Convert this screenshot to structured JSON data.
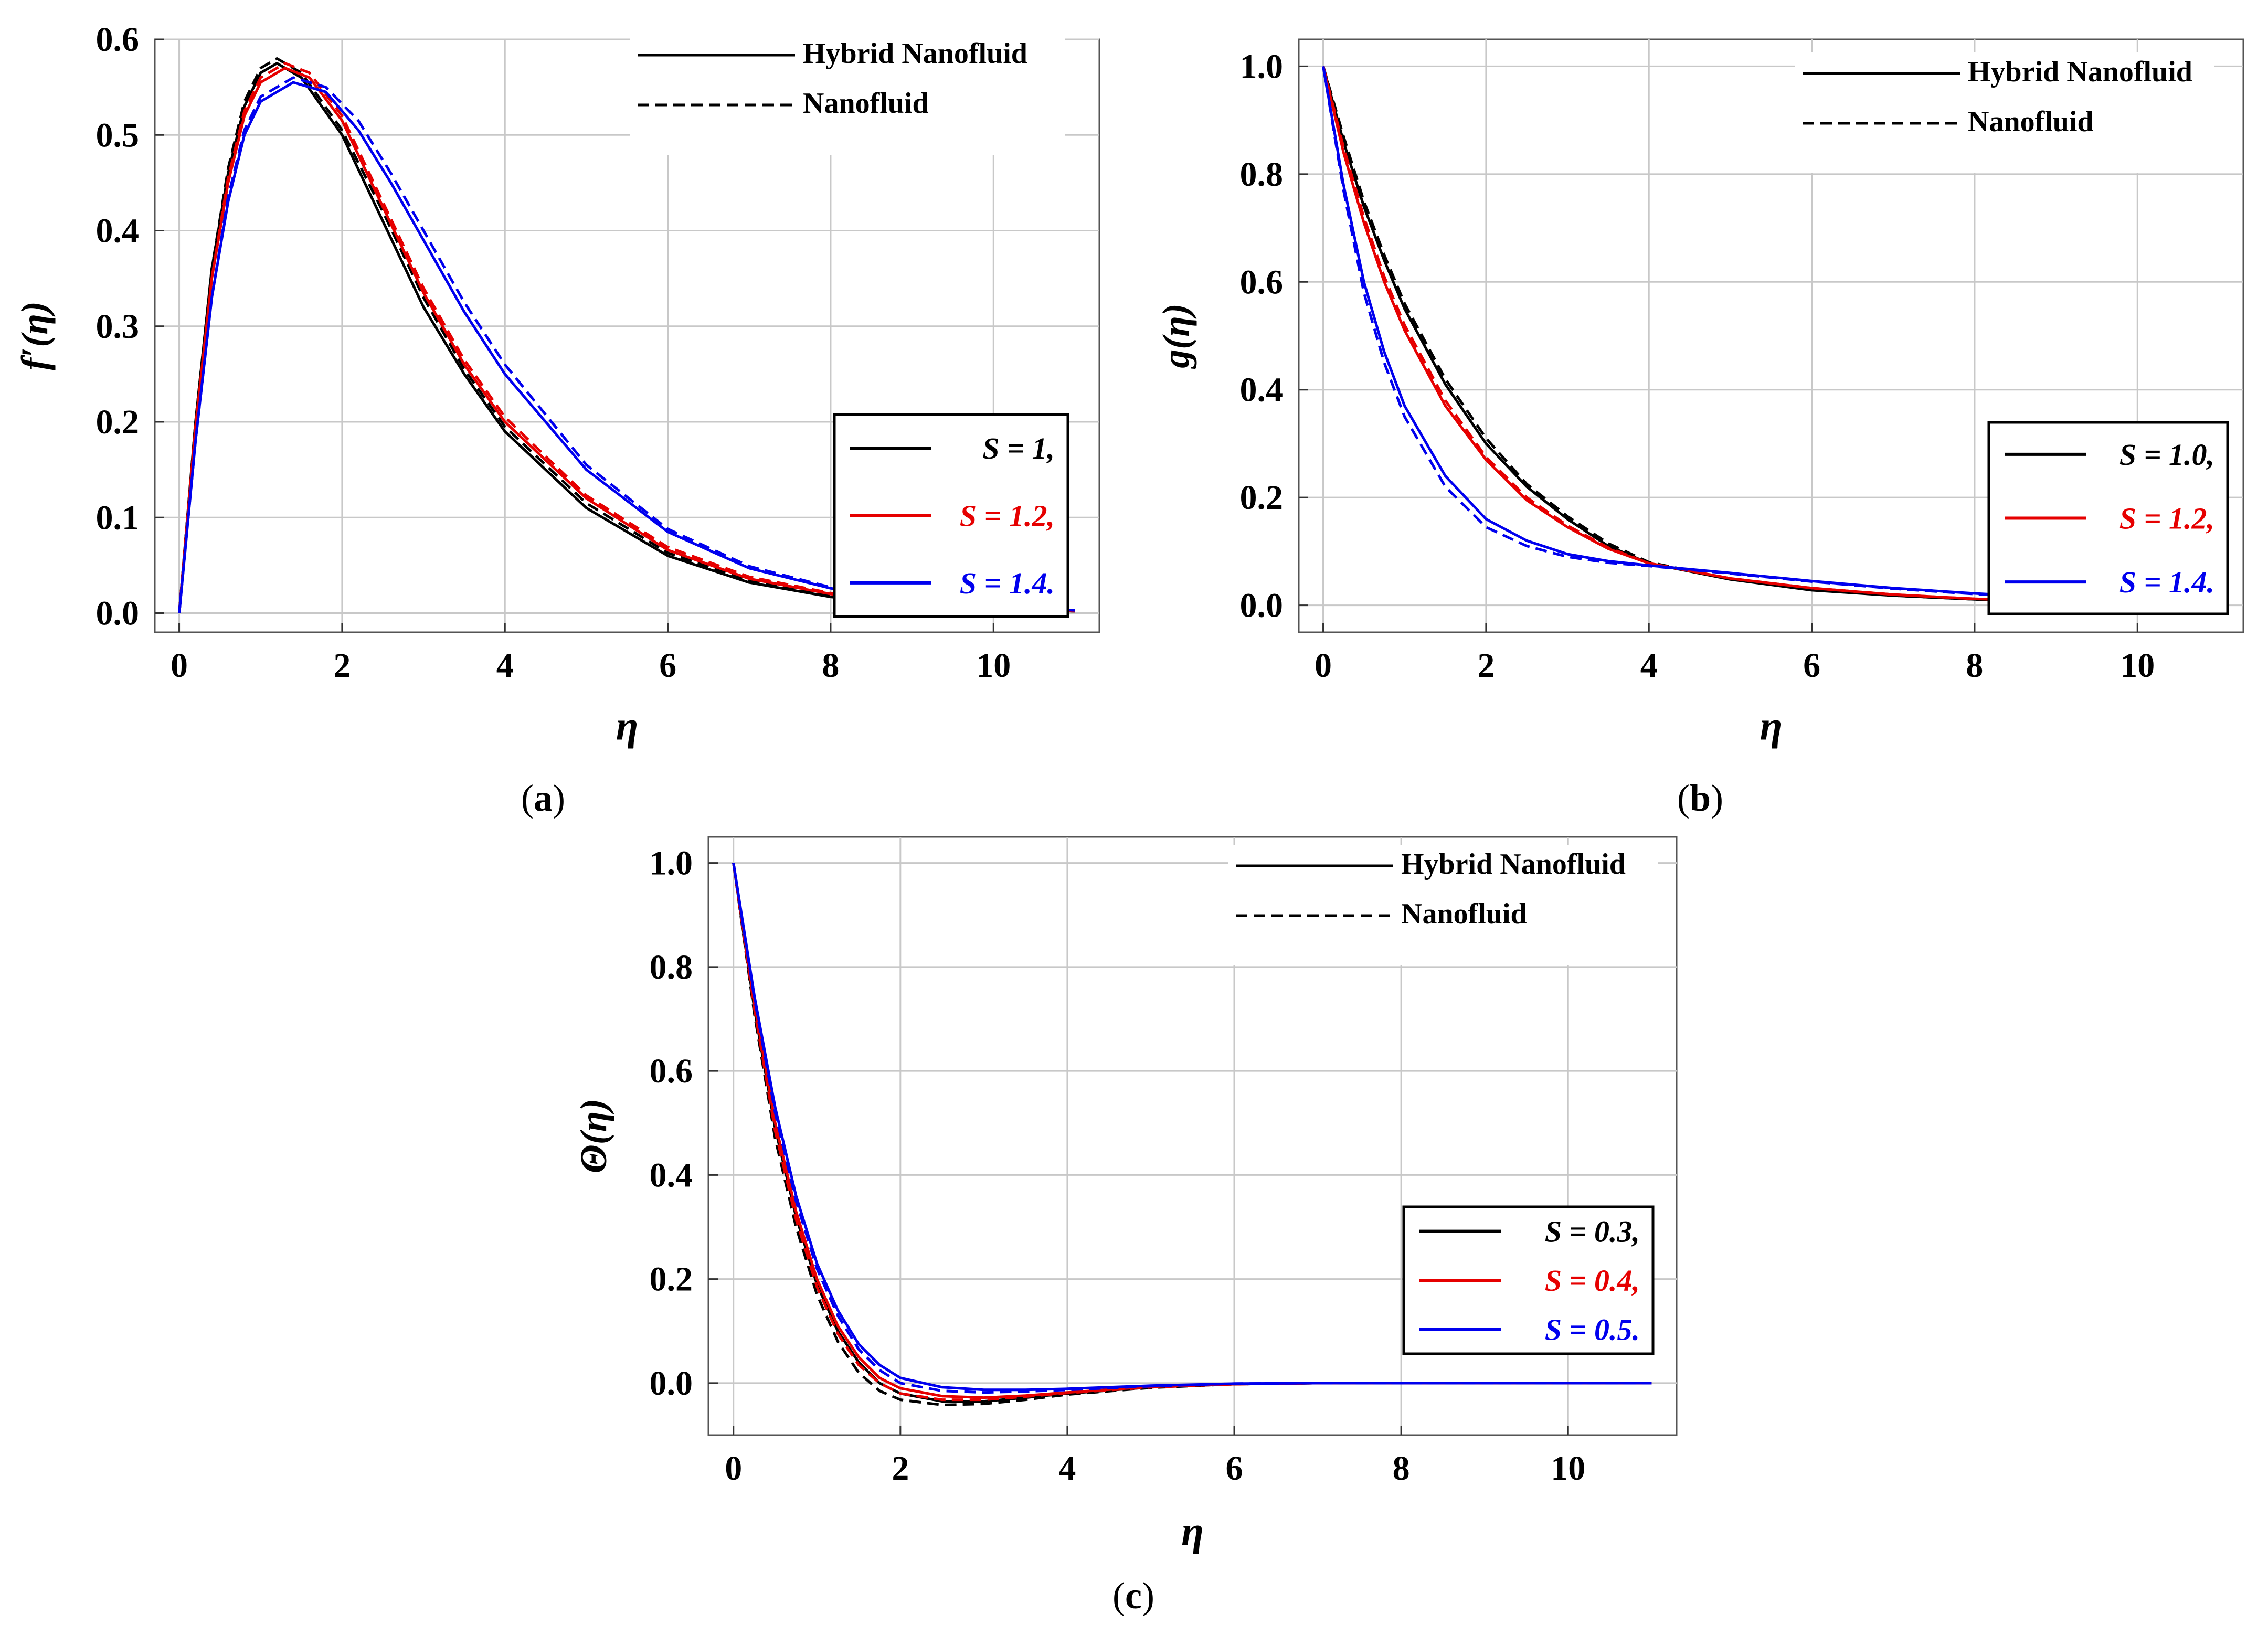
{
  "legend_styles": [
    "Hybrid Nanofluid",
    "Nanofluid"
  ],
  "chart_data": [
    {
      "id": "a",
      "type": "line",
      "caption_letter": "a",
      "ylabel": "f′(η)",
      "xlabel": "η",
      "xlim": [
        -0.3,
        11.3
      ],
      "ylim": [
        -0.02,
        0.6
      ],
      "xticks": [
        "0",
        "2",
        "4",
        "6",
        "8",
        "10"
      ],
      "xtick_values": [
        0,
        2,
        4,
        6,
        8,
        10
      ],
      "yticks": [
        "0.0",
        "0.1",
        "0.2",
        "0.3",
        "0.4",
        "0.5",
        "0.6"
      ],
      "ytick_values": [
        0,
        0.1,
        0.2,
        0.3,
        0.4,
        0.5,
        0.6
      ],
      "series": [
        {
          "name": "S = 1,",
          "fluid": "Hybrid Nanofluid",
          "color": "#000000",
          "dash": false,
          "x": [
            0,
            0.2,
            0.4,
            0.6,
            0.8,
            1.0,
            1.2,
            1.5,
            2,
            2.5,
            3,
            3.5,
            4,
            5,
            6,
            7,
            8,
            9,
            10,
            11
          ],
          "y": [
            0,
            0.2,
            0.36,
            0.46,
            0.53,
            0.565,
            0.575,
            0.56,
            0.5,
            0.41,
            0.32,
            0.25,
            0.19,
            0.11,
            0.06,
            0.032,
            0.017,
            0.009,
            0.005,
            0.002
          ]
        },
        {
          "name": "S = 1,",
          "fluid": "Nanofluid",
          "color": "#000000",
          "dash": true,
          "x": [
            0,
            0.2,
            0.4,
            0.6,
            0.8,
            1.0,
            1.2,
            1.5,
            2,
            2.5,
            3,
            3.5,
            4,
            5,
            6,
            7,
            8,
            9,
            10,
            11
          ],
          "y": [
            0,
            0.2,
            0.36,
            0.465,
            0.535,
            0.57,
            0.58,
            0.565,
            0.505,
            0.42,
            0.33,
            0.255,
            0.195,
            0.115,
            0.063,
            0.034,
            0.018,
            0.01,
            0.005,
            0.002
          ]
        },
        {
          "name": "S = 1.2,",
          "fluid": "Hybrid Nanofluid",
          "color": "#e60000",
          "dash": false,
          "x": [
            0,
            0.2,
            0.4,
            0.6,
            0.8,
            1.0,
            1.3,
            1.6,
            2,
            2.5,
            3,
            3.5,
            4,
            5,
            6,
            7,
            8,
            9,
            10,
            11
          ],
          "y": [
            0,
            0.195,
            0.35,
            0.45,
            0.52,
            0.555,
            0.57,
            0.56,
            0.515,
            0.425,
            0.335,
            0.26,
            0.2,
            0.12,
            0.066,
            0.036,
            0.02,
            0.011,
            0.006,
            0.002
          ]
        },
        {
          "name": "S = 1.2,",
          "fluid": "Nanofluid",
          "color": "#e60000",
          "dash": true,
          "x": [
            0,
            0.2,
            0.4,
            0.6,
            0.8,
            1.0,
            1.3,
            1.6,
            2,
            2.5,
            3,
            3.5,
            4,
            5,
            6,
            7,
            8,
            9,
            10,
            11
          ],
          "y": [
            0,
            0.195,
            0.35,
            0.455,
            0.525,
            0.56,
            0.575,
            0.565,
            0.52,
            0.43,
            0.34,
            0.265,
            0.205,
            0.123,
            0.069,
            0.038,
            0.021,
            0.011,
            0.006,
            0.002
          ]
        },
        {
          "name": "S = 1.4.",
          "fluid": "Hybrid Nanofluid",
          "color": "#0000ee",
          "dash": false,
          "x": [
            0,
            0.2,
            0.4,
            0.6,
            0.8,
            1.0,
            1.4,
            1.8,
            2.2,
            2.6,
            3,
            3.5,
            4,
            5,
            6,
            7,
            8,
            9,
            10,
            11
          ],
          "y": [
            0,
            0.18,
            0.33,
            0.43,
            0.5,
            0.535,
            0.555,
            0.545,
            0.505,
            0.45,
            0.39,
            0.315,
            0.25,
            0.15,
            0.085,
            0.047,
            0.026,
            0.014,
            0.007,
            0.003
          ]
        },
        {
          "name": "S = 1.4.",
          "fluid": "Nanofluid",
          "color": "#0000ee",
          "dash": true,
          "x": [
            0,
            0.2,
            0.4,
            0.6,
            0.8,
            1.0,
            1.4,
            1.8,
            2.2,
            2.6,
            3,
            3.5,
            4,
            5,
            6,
            7,
            8,
            9,
            10,
            11
          ],
          "y": [
            0,
            0.18,
            0.33,
            0.435,
            0.505,
            0.54,
            0.56,
            0.55,
            0.515,
            0.46,
            0.4,
            0.325,
            0.26,
            0.155,
            0.088,
            0.049,
            0.027,
            0.015,
            0.008,
            0.003
          ]
        }
      ]
    },
    {
      "id": "b",
      "type": "line",
      "caption_letter": "b",
      "ylabel": "g(η)",
      "xlabel": "η",
      "xlim": [
        -0.3,
        11.3
      ],
      "ylim": [
        -0.05,
        1.05
      ],
      "xticks": [
        "0",
        "2",
        "4",
        "6",
        "8",
        "10"
      ],
      "xtick_values": [
        0,
        2,
        4,
        6,
        8,
        10
      ],
      "yticks": [
        "0.0",
        "0.2",
        "0.4",
        "0.6",
        "0.8",
        "1.0"
      ],
      "ytick_values": [
        0,
        0.2,
        0.4,
        0.6,
        0.8,
        1.0
      ],
      "series": [
        {
          "name": "S = 1.0,",
          "fluid": "Hybrid Nanofluid",
          "color": "#000000",
          "dash": false,
          "x": [
            0,
            0.25,
            0.5,
            0.75,
            1,
            1.5,
            2,
            2.5,
            3,
            3.5,
            4,
            5,
            6,
            7,
            8,
            9,
            10,
            11
          ],
          "y": [
            1.0,
            0.86,
            0.74,
            0.64,
            0.55,
            0.41,
            0.3,
            0.22,
            0.16,
            0.11,
            0.078,
            0.048,
            0.028,
            0.018,
            0.011,
            0.007,
            0.004,
            0.002
          ]
        },
        {
          "name": "S = 1.0,",
          "fluid": "Nanofluid",
          "color": "#000000",
          "dash": true,
          "x": [
            0,
            0.25,
            0.5,
            0.75,
            1,
            1.5,
            2,
            2.5,
            3,
            3.5,
            4,
            5,
            6,
            7,
            8,
            9,
            10,
            11
          ],
          "y": [
            1.0,
            0.87,
            0.75,
            0.65,
            0.56,
            0.42,
            0.31,
            0.225,
            0.165,
            0.115,
            0.08,
            0.049,
            0.029,
            0.018,
            0.011,
            0.007,
            0.004,
            0.002
          ]
        },
        {
          "name": "S = 1.2,",
          "fluid": "Hybrid Nanofluid",
          "color": "#e60000",
          "dash": false,
          "x": [
            0,
            0.25,
            0.5,
            0.75,
            1,
            1.5,
            2,
            2.5,
            3,
            3.5,
            4,
            5,
            6,
            7,
            8,
            9,
            10,
            11
          ],
          "y": [
            1.0,
            0.84,
            0.71,
            0.6,
            0.51,
            0.37,
            0.27,
            0.195,
            0.145,
            0.105,
            0.078,
            0.05,
            0.032,
            0.02,
            0.012,
            0.008,
            0.005,
            0.002
          ]
        },
        {
          "name": "S = 1.2,",
          "fluid": "Nanofluid",
          "color": "#e60000",
          "dash": true,
          "x": [
            0,
            0.25,
            0.5,
            0.75,
            1,
            1.5,
            2,
            2.5,
            3,
            3.5,
            4,
            5,
            6,
            7,
            8,
            9,
            10,
            11
          ],
          "y": [
            1.0,
            0.85,
            0.72,
            0.61,
            0.52,
            0.38,
            0.275,
            0.2,
            0.148,
            0.107,
            0.078,
            0.05,
            0.032,
            0.02,
            0.012,
            0.008,
            0.005,
            0.002
          ]
        },
        {
          "name": "S = 1.4.",
          "fluid": "Hybrid Nanofluid",
          "color": "#0000ee",
          "dash": false,
          "x": [
            0,
            0.25,
            0.5,
            0.75,
            1,
            1.5,
            2,
            2.5,
            3,
            3.5,
            4,
            5,
            6,
            7,
            8,
            9,
            10,
            11
          ],
          "y": [
            1.0,
            0.78,
            0.6,
            0.47,
            0.37,
            0.24,
            0.16,
            0.12,
            0.095,
            0.082,
            0.074,
            0.06,
            0.045,
            0.032,
            0.022,
            0.014,
            0.008,
            0.003
          ]
        },
        {
          "name": "S = 1.4.",
          "fluid": "Nanofluid",
          "color": "#0000ee",
          "dash": true,
          "x": [
            0,
            0.25,
            0.5,
            0.75,
            1,
            1.5,
            2,
            2.5,
            3,
            3.5,
            4,
            5,
            6,
            7,
            8,
            9,
            10,
            11
          ],
          "y": [
            1.0,
            0.77,
            0.58,
            0.45,
            0.35,
            0.22,
            0.145,
            0.11,
            0.09,
            0.079,
            0.073,
            0.059,
            0.044,
            0.031,
            0.021,
            0.013,
            0.007,
            0.003
          ]
        }
      ]
    },
    {
      "id": "c",
      "type": "line",
      "caption_letter": "c",
      "ylabel": "Θ(η)",
      "xlabel": "η",
      "xlim": [
        -0.3,
        11.3
      ],
      "ylim": [
        -0.1,
        1.05
      ],
      "xticks": [
        "0",
        "2",
        "4",
        "6",
        "8",
        "10"
      ],
      "xtick_values": [
        0,
        2,
        4,
        6,
        8,
        10
      ],
      "yticks": [
        "0.0",
        "0.2",
        "0.4",
        "0.6",
        "0.8",
        "1.0"
      ],
      "ytick_values": [
        0,
        0.2,
        0.4,
        0.6,
        0.8,
        1.0
      ],
      "series": [
        {
          "name": "S = 0.3,",
          "fluid": "Hybrid Nanofluid",
          "color": "#000000",
          "dash": false,
          "x": [
            0,
            0.25,
            0.5,
            0.75,
            1,
            1.25,
            1.5,
            1.75,
            2,
            2.5,
            3,
            3.5,
            4,
            5,
            6,
            7,
            8,
            9,
            10,
            11
          ],
          "y": [
            1.0,
            0.72,
            0.49,
            0.32,
            0.19,
            0.1,
            0.04,
            0.0,
            -0.02,
            -0.035,
            -0.035,
            -0.028,
            -0.02,
            -0.008,
            -0.002,
            0,
            0,
            0,
            0,
            0
          ]
        },
        {
          "name": "S = 0.3,",
          "fluid": "Nanofluid",
          "color": "#000000",
          "dash": true,
          "x": [
            0,
            0.25,
            0.5,
            0.75,
            1,
            1.25,
            1.5,
            1.75,
            2,
            2.5,
            3,
            3.5,
            4,
            5,
            6,
            7,
            8,
            9,
            10,
            11
          ],
          "y": [
            1.0,
            0.71,
            0.47,
            0.3,
            0.17,
            0.08,
            0.02,
            -0.015,
            -0.032,
            -0.042,
            -0.04,
            -0.032,
            -0.022,
            -0.009,
            -0.002,
            0,
            0,
            0,
            0,
            0
          ]
        },
        {
          "name": "S = 0.4,",
          "fluid": "Hybrid Nanofluid",
          "color": "#e60000",
          "dash": false,
          "x": [
            0,
            0.25,
            0.5,
            0.75,
            1,
            1.25,
            1.5,
            1.75,
            2,
            2.5,
            3,
            3.5,
            4,
            5,
            6,
            7,
            8,
            9,
            10,
            11
          ],
          "y": [
            1.0,
            0.73,
            0.5,
            0.33,
            0.2,
            0.11,
            0.05,
            0.01,
            -0.01,
            -0.025,
            -0.028,
            -0.024,
            -0.018,
            -0.007,
            -0.002,
            0,
            0,
            0,
            0,
            0
          ]
        },
        {
          "name": "S = 0.4,",
          "fluid": "Nanofluid",
          "color": "#e60000",
          "dash": true,
          "x": [
            0,
            0.25,
            0.5,
            0.75,
            1,
            1.25,
            1.5,
            1.75,
            2,
            2.5,
            3,
            3.5,
            4,
            5,
            6,
            7,
            8,
            9,
            10,
            11
          ],
          "y": [
            1.0,
            0.72,
            0.485,
            0.315,
            0.185,
            0.095,
            0.035,
            0.0,
            -0.02,
            -0.032,
            -0.032,
            -0.026,
            -0.019,
            -0.008,
            -0.002,
            0,
            0,
            0,
            0,
            0
          ]
        },
        {
          "name": "S = 0.5.",
          "fluid": "Hybrid Nanofluid",
          "color": "#0000ee",
          "dash": false,
          "x": [
            0,
            0.25,
            0.5,
            0.75,
            1,
            1.25,
            1.5,
            1.75,
            2,
            2.5,
            3,
            3.5,
            4,
            5,
            6,
            7,
            8,
            9,
            10,
            11
          ],
          "y": [
            1.0,
            0.745,
            0.53,
            0.36,
            0.23,
            0.14,
            0.075,
            0.035,
            0.01,
            -0.008,
            -0.013,
            -0.013,
            -0.011,
            -0.005,
            -0.001,
            0,
            0,
            0,
            0,
            0
          ]
        },
        {
          "name": "S = 0.5.",
          "fluid": "Nanofluid",
          "color": "#0000ee",
          "dash": true,
          "x": [
            0,
            0.25,
            0.5,
            0.75,
            1,
            1.25,
            1.5,
            1.75,
            2,
            2.5,
            3,
            3.5,
            4,
            5,
            6,
            7,
            8,
            9,
            10,
            11
          ],
          "y": [
            1.0,
            0.74,
            0.52,
            0.35,
            0.22,
            0.13,
            0.065,
            0.025,
            0.0,
            -0.015,
            -0.018,
            -0.016,
            -0.013,
            -0.006,
            -0.001,
            0,
            0,
            0,
            0,
            0
          ]
        }
      ]
    }
  ]
}
